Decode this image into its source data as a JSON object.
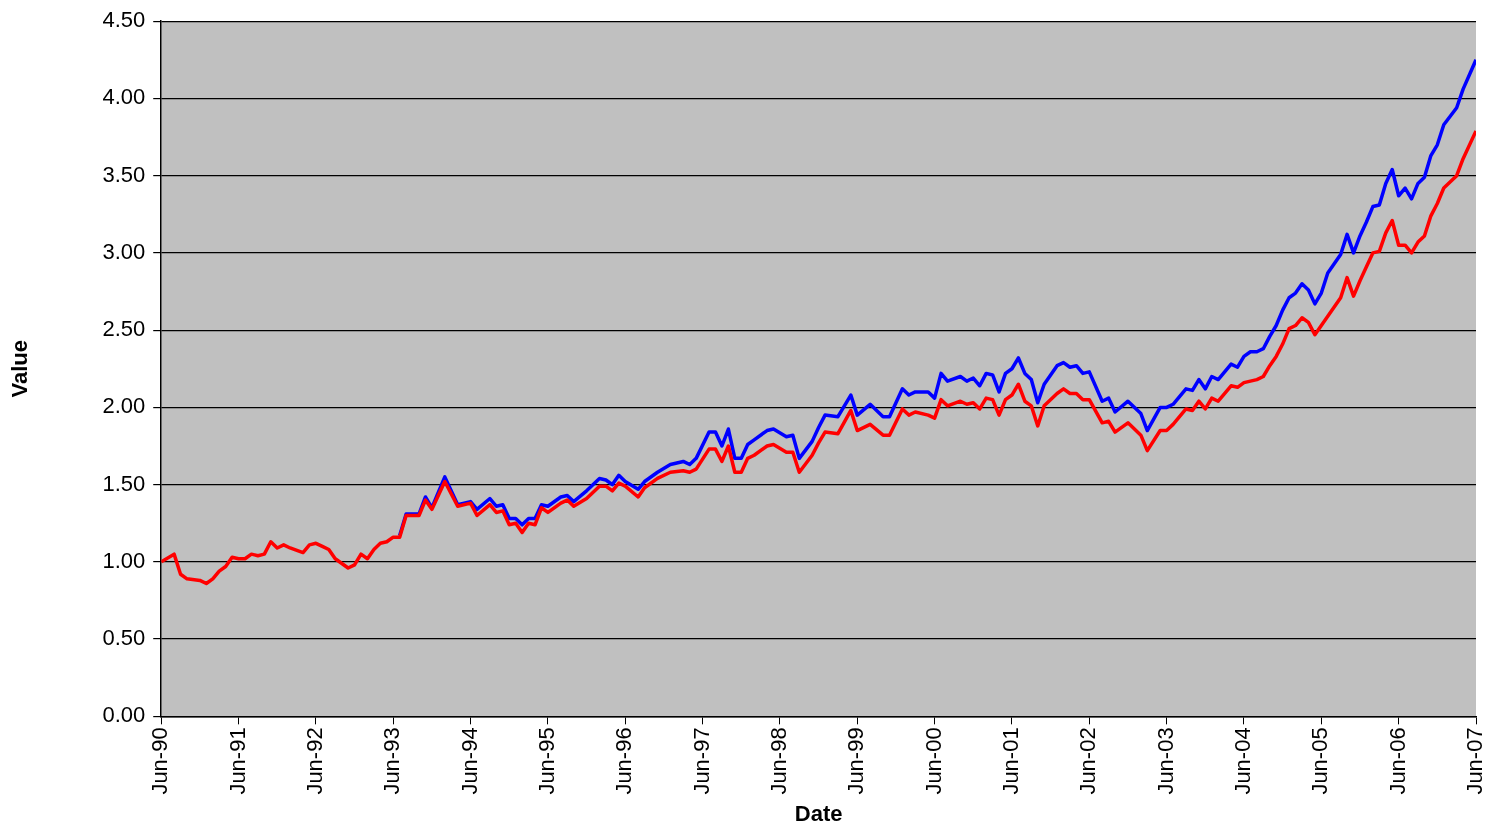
{
  "chart_data": {
    "type": "line",
    "xlabel": "Date",
    "ylabel": "Value",
    "x": [
      "1990-06",
      "1990-08",
      "1990-09",
      "1990-10",
      "1990-12",
      "1991-01",
      "1991-02",
      "1991-03",
      "1991-04",
      "1991-05",
      "1991-06",
      "1991-07",
      "1991-08",
      "1991-09",
      "1991-10",
      "1991-11",
      "1991-12",
      "1992-01",
      "1992-02",
      "1992-04",
      "1992-05",
      "1992-06",
      "1992-07",
      "1992-08",
      "1992-09",
      "1992-11",
      "1992-12",
      "1993-01",
      "1993-02",
      "1993-03",
      "1993-04",
      "1993-05",
      "1993-06",
      "1993-07",
      "1993-08",
      "1993-10",
      "1993-11",
      "1993-12",
      "1994-02",
      "1994-04",
      "1994-06",
      "1994-07",
      "1994-09",
      "1994-10",
      "1994-11",
      "1994-12",
      "1995-01",
      "1995-02",
      "1995-03",
      "1995-04",
      "1995-05",
      "1995-06",
      "1995-08",
      "1995-09",
      "1995-10",
      "1995-12",
      "1996-02",
      "1996-03",
      "1996-04",
      "1996-05",
      "1996-06",
      "1996-08",
      "1996-09",
      "1996-11",
      "1997-01",
      "1997-03",
      "1997-04",
      "1997-05",
      "1997-07",
      "1997-08",
      "1997-09",
      "1997-10",
      "1997-11",
      "1997-12",
      "1998-01",
      "1998-02",
      "1998-04",
      "1998-05",
      "1998-07",
      "1998-08",
      "1998-09",
      "1998-11",
      "1998-12",
      "1999-01",
      "1999-03",
      "1999-05",
      "1999-06",
      "1999-08",
      "1999-10",
      "1999-11",
      "2000-01",
      "2000-02",
      "2000-03",
      "2000-05",
      "2000-06",
      "2000-07",
      "2000-08",
      "2000-10",
      "2000-11",
      "2000-12",
      "2001-01",
      "2001-02",
      "2001-03",
      "2001-04",
      "2001-05",
      "2001-06",
      "2001-07",
      "2001-08",
      "2001-09",
      "2001-10",
      "2001-11",
      "2002-01",
      "2002-02",
      "2002-03",
      "2002-04",
      "2002-05",
      "2002-06",
      "2002-08",
      "2002-09",
      "2002-10",
      "2002-12",
      "2003-02",
      "2003-03",
      "2003-05",
      "2003-06",
      "2003-07",
      "2003-09",
      "2003-10",
      "2003-11",
      "2003-12",
      "2004-01",
      "2004-02",
      "2004-04",
      "2004-05",
      "2004-06",
      "2004-07",
      "2004-08",
      "2004-09",
      "2004-10",
      "2004-11",
      "2004-12",
      "2005-01",
      "2005-02",
      "2005-03",
      "2005-04",
      "2005-05",
      "2005-06",
      "2005-07",
      "2005-08",
      "2005-09",
      "2005-10",
      "2005-11",
      "2005-12",
      "2006-01",
      "2006-02",
      "2006-03",
      "2006-04",
      "2006-05",
      "2006-06",
      "2006-07",
      "2006-08",
      "2006-09",
      "2006-10",
      "2006-11",
      "2006-12",
      "2007-01",
      "2007-03",
      "2007-04",
      "2007-06"
    ],
    "series": [
      {
        "color": "#0000ff",
        "values": [
          null,
          null,
          null,
          null,
          null,
          null,
          null,
          null,
          null,
          null,
          null,
          null,
          null,
          null,
          null,
          null,
          null,
          null,
          null,
          null,
          null,
          null,
          null,
          null,
          null,
          null,
          null,
          null,
          null,
          null,
          null,
          null,
          null,
          1.17,
          1.31,
          1.31,
          1.42,
          1.35,
          1.55,
          1.37,
          1.39,
          1.34,
          1.41,
          1.36,
          1.37,
          1.28,
          1.28,
          1.24,
          1.28,
          1.28,
          1.37,
          1.36,
          1.42,
          1.43,
          1.39,
          1.46,
          1.54,
          1.53,
          1.5,
          1.56,
          1.52,
          1.47,
          1.52,
          1.58,
          1.63,
          1.65,
          1.63,
          1.67,
          1.84,
          1.84,
          1.75,
          1.86,
          1.67,
          1.67,
          1.76,
          1.79,
          1.85,
          1.86,
          1.81,
          1.82,
          1.67,
          1.78,
          1.87,
          1.95,
          1.94,
          2.08,
          1.95,
          2.02,
          1.94,
          1.94,
          2.12,
          2.08,
          2.1,
          2.1,
          2.06,
          2.22,
          2.17,
          2.2,
          2.17,
          2.19,
          2.14,
          2.22,
          2.21,
          2.1,
          2.22,
          2.25,
          2.32,
          2.22,
          2.18,
          2.03,
          2.15,
          2.27,
          2.29,
          2.26,
          2.27,
          2.22,
          2.23,
          2.04,
          2.06,
          1.97,
          2.04,
          1.96,
          1.85,
          2.0,
          2.0,
          2.02,
          2.12,
          2.11,
          2.18,
          2.12,
          2.2,
          2.18,
          2.28,
          2.26,
          2.33,
          2.36,
          2.36,
          2.38,
          2.46,
          2.53,
          2.63,
          2.71,
          2.74,
          2.8,
          2.76,
          2.67,
          2.74,
          2.87,
          2.93,
          2.99,
          3.12,
          3.0,
          3.11,
          3.2,
          3.3,
          3.31,
          3.45,
          3.54,
          3.37,
          3.42,
          3.35,
          3.45,
          3.49,
          3.63,
          3.7,
          3.83,
          3.94,
          4.06,
          4.25
        ]
      },
      {
        "color": "#ff0000",
        "values": [
          1.0,
          1.05,
          0.92,
          0.89,
          0.88,
          0.86,
          0.89,
          0.94,
          0.97,
          1.03,
          1.02,
          1.02,
          1.05,
          1.04,
          1.05,
          1.13,
          1.09,
          1.11,
          1.09,
          1.06,
          1.11,
          1.12,
          1.1,
          1.08,
          1.02,
          0.96,
          0.98,
          1.05,
          1.02,
          1.08,
          1.12,
          1.13,
          1.16,
          1.16,
          1.3,
          1.3,
          1.4,
          1.34,
          1.52,
          1.36,
          1.38,
          1.3,
          1.37,
          1.32,
          1.33,
          1.24,
          1.25,
          1.19,
          1.25,
          1.24,
          1.35,
          1.32,
          1.38,
          1.4,
          1.36,
          1.41,
          1.49,
          1.49,
          1.46,
          1.51,
          1.49,
          1.42,
          1.48,
          1.54,
          1.58,
          1.59,
          1.58,
          1.6,
          1.73,
          1.73,
          1.65,
          1.75,
          1.58,
          1.58,
          1.67,
          1.69,
          1.75,
          1.76,
          1.71,
          1.71,
          1.58,
          1.69,
          1.77,
          1.84,
          1.83,
          1.98,
          1.85,
          1.89,
          1.82,
          1.82,
          1.99,
          1.95,
          1.97,
          1.95,
          1.93,
          2.05,
          2.01,
          2.04,
          2.02,
          2.03,
          1.99,
          2.06,
          2.05,
          1.95,
          2.05,
          2.08,
          2.15,
          2.04,
          2.01,
          1.88,
          2.01,
          2.09,
          2.12,
          2.09,
          2.09,
          2.05,
          2.05,
          1.9,
          1.91,
          1.84,
          1.9,
          1.82,
          1.72,
          1.85,
          1.85,
          1.89,
          1.99,
          1.98,
          2.04,
          1.99,
          2.06,
          2.04,
          2.14,
          2.13,
          2.16,
          2.17,
          2.18,
          2.2,
          2.27,
          2.33,
          2.41,
          2.51,
          2.53,
          2.58,
          2.55,
          2.47,
          2.53,
          2.59,
          2.65,
          2.71,
          2.84,
          2.72,
          2.82,
          2.91,
          3.0,
          3.01,
          3.13,
          3.21,
          3.05,
          3.05,
          3.0,
          3.07,
          3.11,
          3.24,
          3.32,
          3.42,
          3.5,
          3.61,
          3.79
        ]
      }
    ],
    "xlim": [
      "1990-06",
      "2007-06"
    ],
    "xticks": [
      {
        "value": "1990-06",
        "label": "Jun-90"
      },
      {
        "value": "1991-06",
        "label": "Jun-91"
      },
      {
        "value": "1992-06",
        "label": "Jun-92"
      },
      {
        "value": "1993-06",
        "label": "Jun-93"
      },
      {
        "value": "1994-06",
        "label": "Jun-94"
      },
      {
        "value": "1995-06",
        "label": "Jun-95"
      },
      {
        "value": "1996-06",
        "label": "Jun-96"
      },
      {
        "value": "1997-06",
        "label": "Jun-97"
      },
      {
        "value": "1998-06",
        "label": "Jun-98"
      },
      {
        "value": "1999-06",
        "label": "Jun-99"
      },
      {
        "value": "2000-06",
        "label": "Jun-00"
      },
      {
        "value": "2001-06",
        "label": "Jun-01"
      },
      {
        "value": "2002-06",
        "label": "Jun-02"
      },
      {
        "value": "2003-06",
        "label": "Jun-03"
      },
      {
        "value": "2004-06",
        "label": "Jun-04"
      },
      {
        "value": "2005-06",
        "label": "Jun-05"
      },
      {
        "value": "2006-06",
        "label": "Jun-06"
      },
      {
        "value": "2007-06",
        "label": "Jun-07"
      }
    ],
    "ylim": [
      0,
      4.5
    ],
    "yticks": [
      {
        "value": 0,
        "label": "0.00"
      },
      {
        "value": 0.5,
        "label": "0.50"
      },
      {
        "value": 1,
        "label": "1.00"
      },
      {
        "value": 1.5,
        "label": "1.50"
      },
      {
        "value": 2,
        "label": "2.00"
      },
      {
        "value": 2.5,
        "label": "2.50"
      },
      {
        "value": 3,
        "label": "3.00"
      },
      {
        "value": 3.5,
        "label": "3.50"
      },
      {
        "value": 4,
        "label": "4.00"
      },
      {
        "value": 4.5,
        "label": "4.50"
      }
    ],
    "grid": "y",
    "legend": false,
    "marker": "none",
    "line_style": "solid"
  }
}
